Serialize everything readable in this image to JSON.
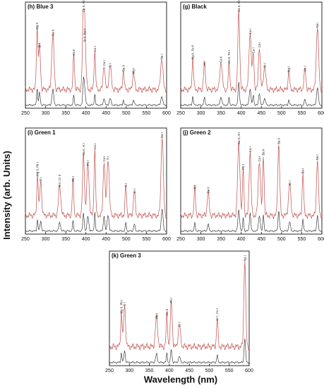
{
  "figure": {
    "ylabel": "Intensity (arb. Units)",
    "xlabel": "Wavelength (nm)",
    "colors": {
      "red_series": "#c0504d",
      "black_series": "#222222",
      "frame": "#111111"
    }
  },
  "chart_data": [
    {
      "type": "line",
      "panel": "(h) Blue 3",
      "xlim": [
        250,
        600
      ],
      "xticks": [
        250,
        300,
        350,
        400,
        450,
        500,
        550,
        600
      ],
      "peaks": [
        {
          "x": 279,
          "h": 0.78,
          "label": "Mg II"
        },
        {
          "x": 285,
          "h": 0.55,
          "label": "Si I"
        },
        {
          "x": 318,
          "h": 0.7,
          "label": "Ca II"
        },
        {
          "x": 370,
          "h": 0.45,
          "label": "Ca II"
        },
        {
          "x": 394,
          "h": 1.0,
          "label": "Ca II, Al I"
        },
        {
          "x": 397,
          "h": 0.62,
          "label": "Sr II, Ba II"
        },
        {
          "x": 422,
          "h": 0.5,
          "label": "Ca I"
        },
        {
          "x": 445,
          "h": 0.32,
          "label": "Ca I"
        },
        {
          "x": 460,
          "h": 0.3,
          "label": "Sr I"
        },
        {
          "x": 493,
          "h": 0.25,
          "label": "Ba II"
        },
        {
          "x": 518,
          "h": 0.22,
          "label": "Mg I"
        },
        {
          "x": 588,
          "h": 0.4,
          "label": "Na I"
        }
      ]
    },
    {
      "type": "line",
      "panel": "(g) Black",
      "xlim": [
        250,
        600
      ],
      "xticks": [
        250,
        300,
        350,
        400,
        450,
        500,
        550,
        600
      ],
      "peaks": [
        {
          "x": 280,
          "h": 0.4,
          "label": "Mg II, Fe II"
        },
        {
          "x": 309,
          "h": 0.32,
          "label": "Al I"
        },
        {
          "x": 350,
          "h": 0.36,
          "label": "Ca II"
        },
        {
          "x": 370,
          "h": 0.35,
          "label": "Ca II, Fe I"
        },
        {
          "x": 394,
          "h": 1.0,
          "label": "Ca II, Al I"
        },
        {
          "x": 422,
          "h": 0.72,
          "label": "Ca I"
        },
        {
          "x": 430,
          "h": 0.48,
          "label": "Ca I"
        },
        {
          "x": 445,
          "h": 0.55,
          "label": "Ca I"
        },
        {
          "x": 458,
          "h": 0.3,
          "label": "Sr I"
        },
        {
          "x": 518,
          "h": 0.24,
          "label": "Mg I"
        },
        {
          "x": 558,
          "h": 0.25,
          "label": "Ca I"
        },
        {
          "x": 589,
          "h": 0.8,
          "label": "Na I"
        }
      ]
    },
    {
      "type": "line",
      "panel": "(i) Green 1",
      "xlim": [
        250,
        600
      ],
      "xticks": [
        250,
        300,
        350,
        400,
        450,
        500,
        550,
        600
      ],
      "peaks": [
        {
          "x": 280,
          "h": 0.52,
          "label": "Mg II, Pb I"
        },
        {
          "x": 288,
          "h": 0.45,
          "label": "Si I"
        },
        {
          "x": 335,
          "h": 0.38,
          "label": "Ti II, Cr II"
        },
        {
          "x": 368,
          "h": 0.45,
          "label": "Pb I"
        },
        {
          "x": 394,
          "h": 0.78,
          "label": "Ca II, Al I"
        },
        {
          "x": 405,
          "h": 0.65,
          "label": "Pb I"
        },
        {
          "x": 422,
          "h": 0.86,
          "label": "Ca I"
        },
        {
          "x": 445,
          "h": 0.7,
          "label": "Ca I"
        },
        {
          "x": 455,
          "h": 0.72,
          "label": "Ti I"
        },
        {
          "x": 499,
          "h": 0.38,
          "label": "Ti I"
        },
        {
          "x": 520,
          "h": 0.3,
          "label": "Cr I"
        },
        {
          "x": 589,
          "h": 1.0,
          "label": "Na I"
        }
      ]
    },
    {
      "type": "line",
      "panel": "(j) Green 2",
      "xlim": [
        250,
        600
      ],
      "xticks": [
        250,
        300,
        350,
        400,
        450,
        500,
        550,
        600
      ],
      "peaks": [
        {
          "x": 285,
          "h": 0.35,
          "label": "Si I"
        },
        {
          "x": 318,
          "h": 0.3,
          "label": "Ca II"
        },
        {
          "x": 394,
          "h": 0.92,
          "label": "Ca II, Al I"
        },
        {
          "x": 405,
          "h": 0.6,
          "label": "Pb I"
        },
        {
          "x": 422,
          "h": 0.82,
          "label": "Ca I"
        },
        {
          "x": 445,
          "h": 0.7,
          "label": "Ca I"
        },
        {
          "x": 455,
          "h": 0.78,
          "label": "Ba II"
        },
        {
          "x": 493,
          "h": 0.92,
          "label": "Ba II"
        },
        {
          "x": 520,
          "h": 0.4,
          "label": "Cr I"
        },
        {
          "x": 553,
          "h": 0.55,
          "label": "Ba I"
        },
        {
          "x": 589,
          "h": 0.72,
          "label": "Na I"
        }
      ]
    },
    {
      "type": "line",
      "panel": "(k) Green 3",
      "xlim": [
        250,
        600
      ],
      "xticks": [
        250,
        300,
        350,
        400,
        450,
        500,
        550,
        600
      ],
      "peaks": [
        {
          "x": 280,
          "h": 0.4,
          "label": "Mg II, Pb I"
        },
        {
          "x": 288,
          "h": 0.48,
          "label": "Si I"
        },
        {
          "x": 368,
          "h": 0.34,
          "label": "Pb I"
        },
        {
          "x": 394,
          "h": 0.38,
          "label": "Ca II"
        },
        {
          "x": 405,
          "h": 0.52,
          "label": "Pb I"
        },
        {
          "x": 425,
          "h": 0.25,
          "label": "Cr I"
        },
        {
          "x": 520,
          "h": 0.32,
          "label": "Cr I, Cu I"
        },
        {
          "x": 589,
          "h": 1.0,
          "label": "Na I"
        }
      ]
    }
  ]
}
